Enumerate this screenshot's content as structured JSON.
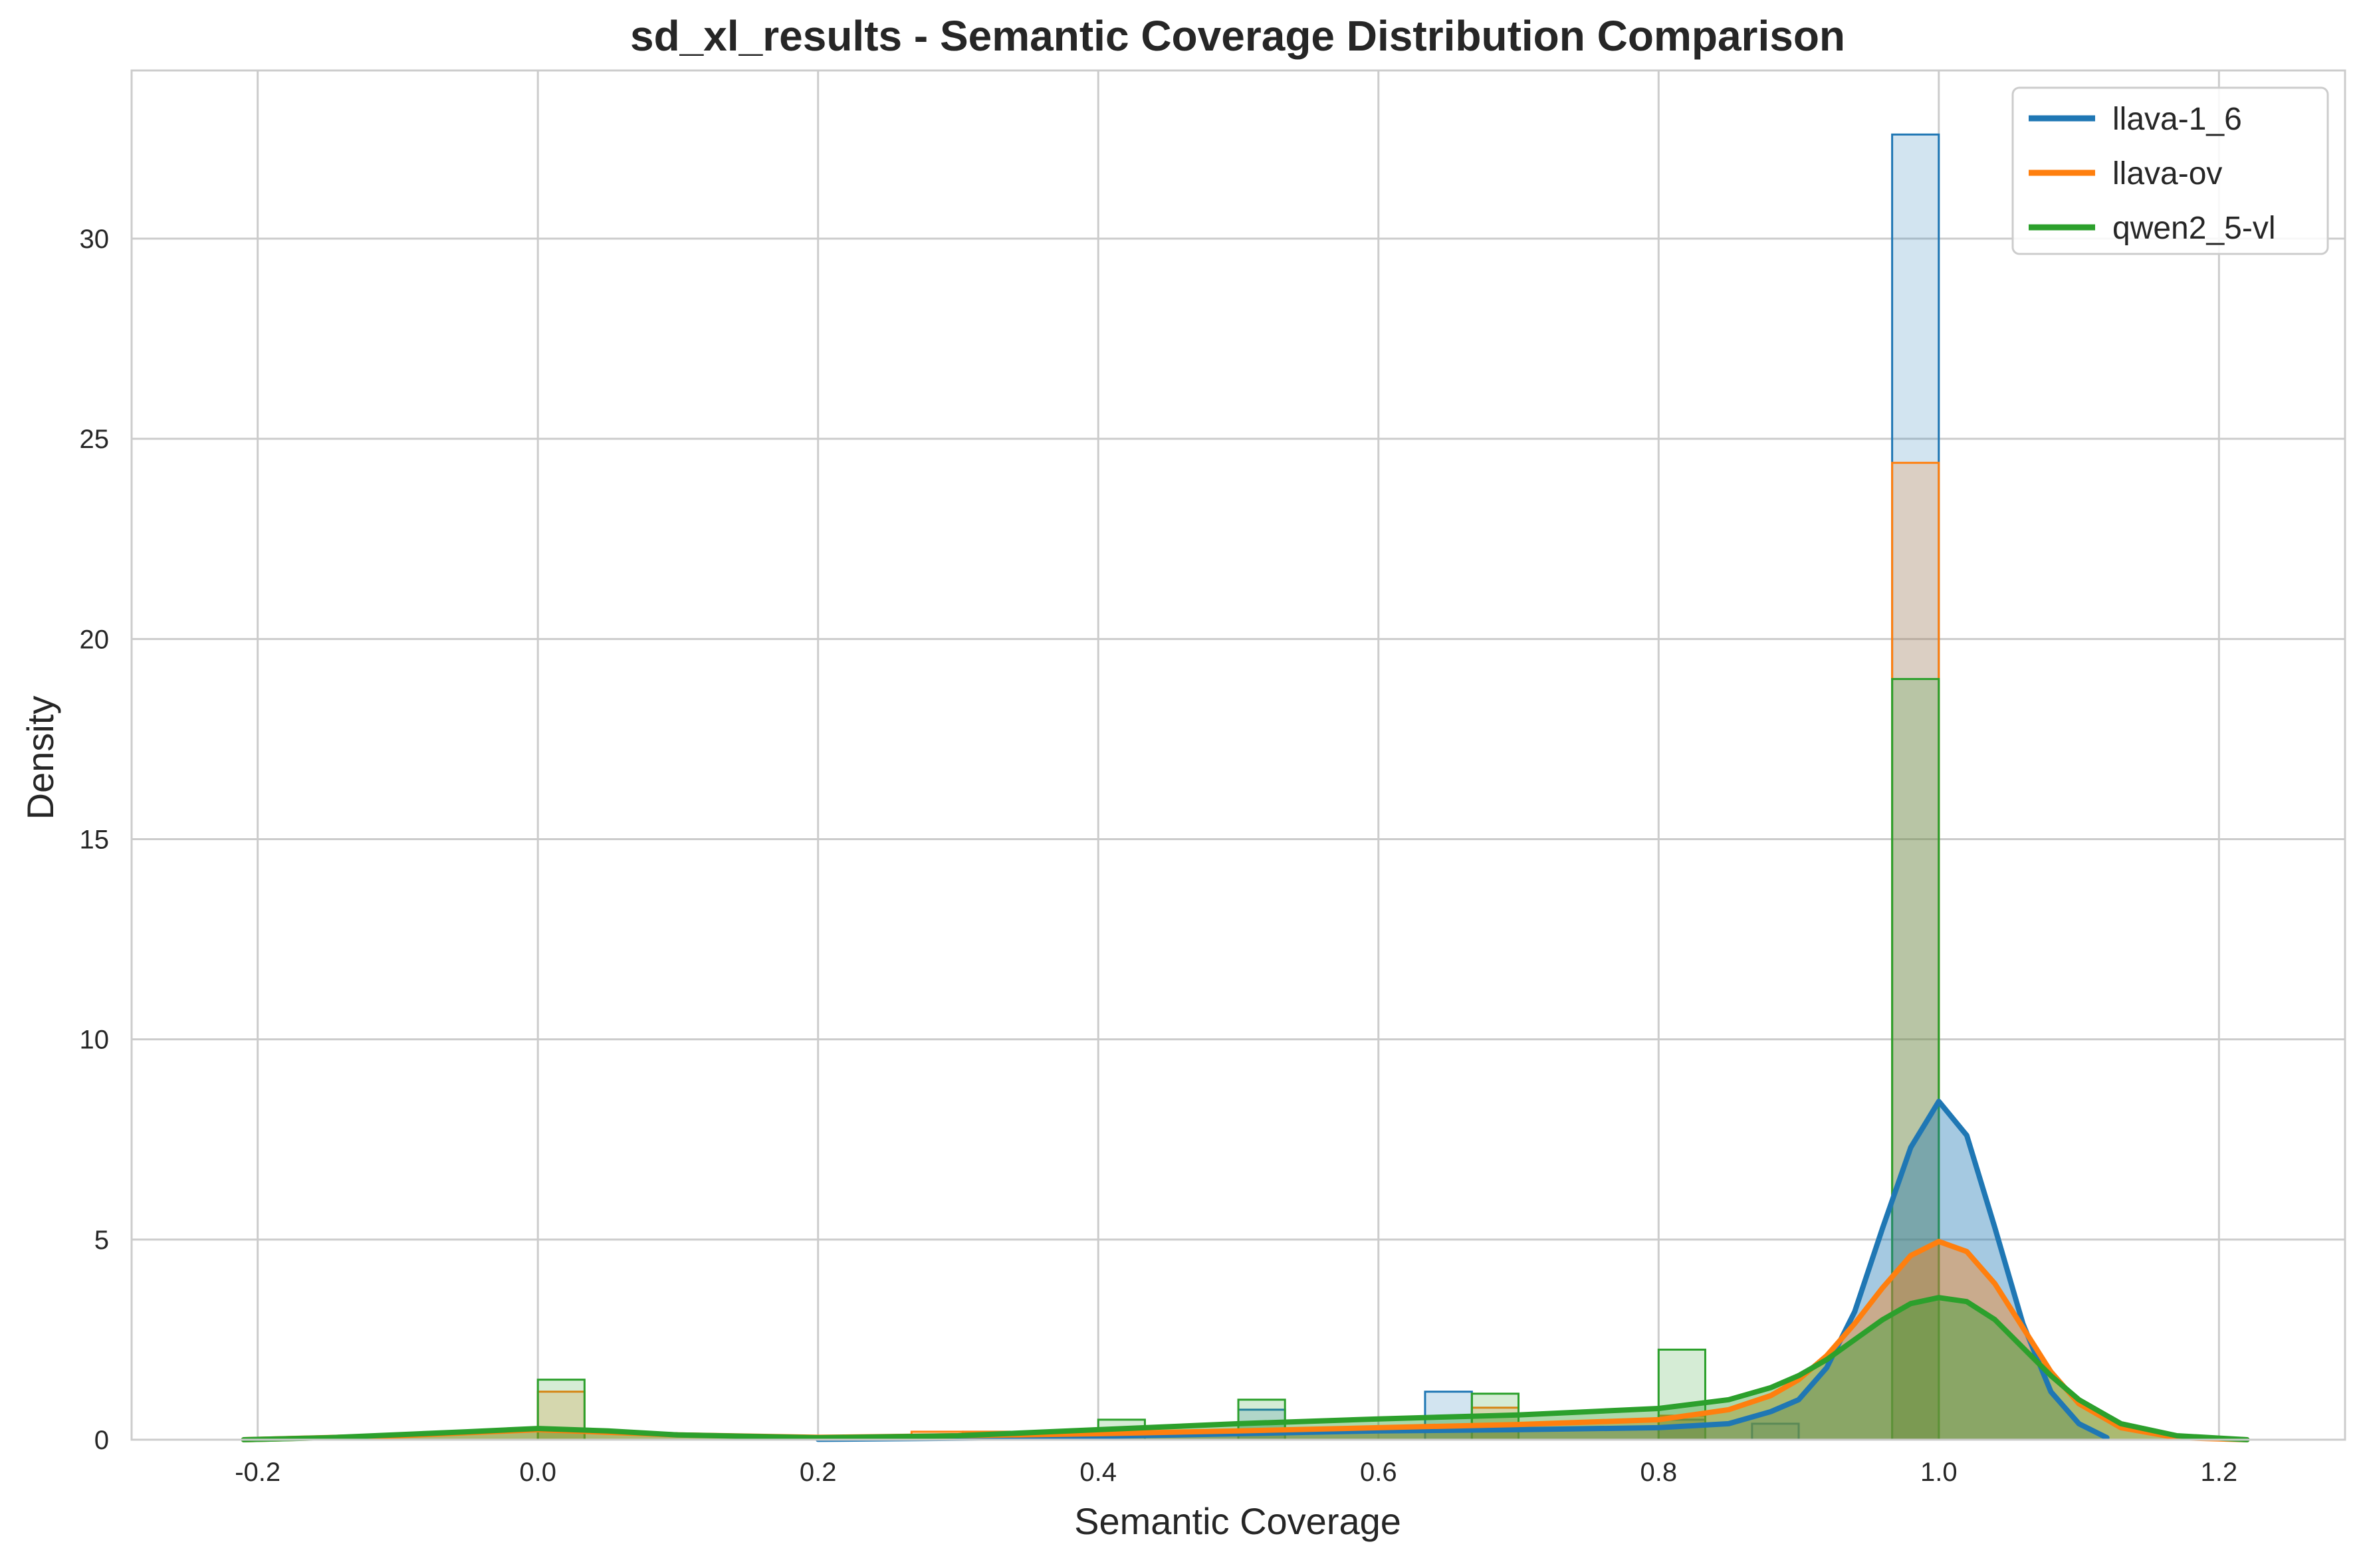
{
  "chart_data": {
    "type": "histogram_kde",
    "title": "sd_xl_results - Semantic Coverage Distribution Comparison",
    "xlabel": "Semantic Coverage",
    "ylabel": "Density",
    "xlim": [
      -0.29,
      1.29
    ],
    "ylim": [
      0,
      34.2
    ],
    "xticks": [
      -0.2,
      0.0,
      0.2,
      0.4,
      0.6,
      0.8,
      1.0,
      1.2
    ],
    "xtick_labels": [
      "-0.2",
      "0.0",
      "0.2",
      "0.4",
      "0.6",
      "0.8",
      "1.0",
      "1.2"
    ],
    "yticks": [
      0,
      5,
      10,
      15,
      20,
      25,
      30
    ],
    "ytick_labels": [
      "0",
      "5",
      "10",
      "15",
      "20",
      "25",
      "30"
    ],
    "grid": true,
    "legend_position": "top-right",
    "series": [
      {
        "name": "llava-1_6",
        "color": "#1f77b4",
        "bin_width": 0.0333,
        "bins": [
          {
            "x0": 0.3033,
            "x1": 0.3367,
            "y": 0.2
          },
          {
            "x0": 0.5,
            "x1": 0.5333,
            "y": 0.75
          },
          {
            "x0": 0.6333,
            "x1": 0.6667,
            "y": 1.2
          },
          {
            "x0": 0.8,
            "x1": 0.8333,
            "y": 0.5
          },
          {
            "x0": 0.8667,
            "x1": 0.9,
            "y": 0.4
          },
          {
            "x0": 0.9667,
            "x1": 1.0,
            "y": 32.6
          }
        ],
        "kde": [
          [
            0.2,
            0.01
          ],
          [
            0.35,
            0.05
          ],
          [
            0.5,
            0.15
          ],
          [
            0.6,
            0.22
          ],
          [
            0.7,
            0.25
          ],
          [
            0.8,
            0.3
          ],
          [
            0.85,
            0.4
          ],
          [
            0.88,
            0.7
          ],
          [
            0.9,
            1.0
          ],
          [
            0.92,
            1.8
          ],
          [
            0.94,
            3.2
          ],
          [
            0.96,
            5.3
          ],
          [
            0.98,
            7.3
          ],
          [
            1.0,
            8.45
          ],
          [
            1.02,
            7.6
          ],
          [
            1.04,
            5.3
          ],
          [
            1.06,
            2.9
          ],
          [
            1.08,
            1.2
          ],
          [
            1.1,
            0.4
          ],
          [
            1.12,
            0.05
          ]
        ]
      },
      {
        "name": "llava-ov",
        "color": "#ff7f0e",
        "bin_width": 0.0333,
        "bins": [
          {
            "x0": 0.0,
            "x1": 0.0333,
            "y": 1.2
          },
          {
            "x0": 0.2667,
            "x1": 0.3033,
            "y": 0.2
          },
          {
            "x0": 0.3033,
            "x1": 0.3367,
            "y": 0.2
          },
          {
            "x0": 0.6667,
            "x1": 0.7,
            "y": 0.8
          },
          {
            "x0": 0.8,
            "x1": 0.8333,
            "y": 0.6
          },
          {
            "x0": 0.9667,
            "x1": 1.0,
            "y": 24.4
          }
        ],
        "kde": [
          [
            -0.21,
            0.0
          ],
          [
            -0.1,
            0.1
          ],
          [
            0.0,
            0.25
          ],
          [
            0.1,
            0.12
          ],
          [
            0.2,
            0.06
          ],
          [
            0.3,
            0.1
          ],
          [
            0.4,
            0.15
          ],
          [
            0.5,
            0.22
          ],
          [
            0.6,
            0.3
          ],
          [
            0.7,
            0.38
          ],
          [
            0.8,
            0.5
          ],
          [
            0.85,
            0.75
          ],
          [
            0.88,
            1.1
          ],
          [
            0.9,
            1.5
          ],
          [
            0.92,
            2.1
          ],
          [
            0.94,
            2.9
          ],
          [
            0.96,
            3.8
          ],
          [
            0.98,
            4.6
          ],
          [
            1.0,
            4.95
          ],
          [
            1.02,
            4.7
          ],
          [
            1.04,
            3.9
          ],
          [
            1.06,
            2.8
          ],
          [
            1.08,
            1.7
          ],
          [
            1.1,
            0.9
          ],
          [
            1.13,
            0.3
          ],
          [
            1.17,
            0.05
          ],
          [
            1.22,
            0.0
          ]
        ]
      },
      {
        "name": "qwen2_5-vl",
        "color": "#2ca02c",
        "bin_width": 0.0333,
        "bins": [
          {
            "x0": 0.0,
            "x1": 0.0333,
            "y": 1.5
          },
          {
            "x0": 0.4,
            "x1": 0.4333,
            "y": 0.5
          },
          {
            "x0": 0.5,
            "x1": 0.5333,
            "y": 1.0
          },
          {
            "x0": 0.6667,
            "x1": 0.7,
            "y": 1.15
          },
          {
            "x0": 0.8,
            "x1": 0.8333,
            "y": 2.25
          },
          {
            "x0": 0.9667,
            "x1": 1.0,
            "y": 19.0
          }
        ],
        "kde": [
          [
            -0.21,
            0.0
          ],
          [
            -0.15,
            0.05
          ],
          [
            -0.05,
            0.2
          ],
          [
            0.0,
            0.28
          ],
          [
            0.05,
            0.22
          ],
          [
            0.1,
            0.12
          ],
          [
            0.2,
            0.05
          ],
          [
            0.3,
            0.1
          ],
          [
            0.4,
            0.25
          ],
          [
            0.5,
            0.4
          ],
          [
            0.6,
            0.52
          ],
          [
            0.7,
            0.62
          ],
          [
            0.8,
            0.78
          ],
          [
            0.85,
            1.0
          ],
          [
            0.88,
            1.3
          ],
          [
            0.9,
            1.6
          ],
          [
            0.92,
            2.0
          ],
          [
            0.94,
            2.5
          ],
          [
            0.96,
            3.0
          ],
          [
            0.98,
            3.4
          ],
          [
            1.0,
            3.55
          ],
          [
            1.02,
            3.45
          ],
          [
            1.04,
            3.0
          ],
          [
            1.06,
            2.3
          ],
          [
            1.08,
            1.6
          ],
          [
            1.1,
            1.0
          ],
          [
            1.13,
            0.4
          ],
          [
            1.17,
            0.1
          ],
          [
            1.22,
            0.0
          ]
        ]
      }
    ]
  }
}
